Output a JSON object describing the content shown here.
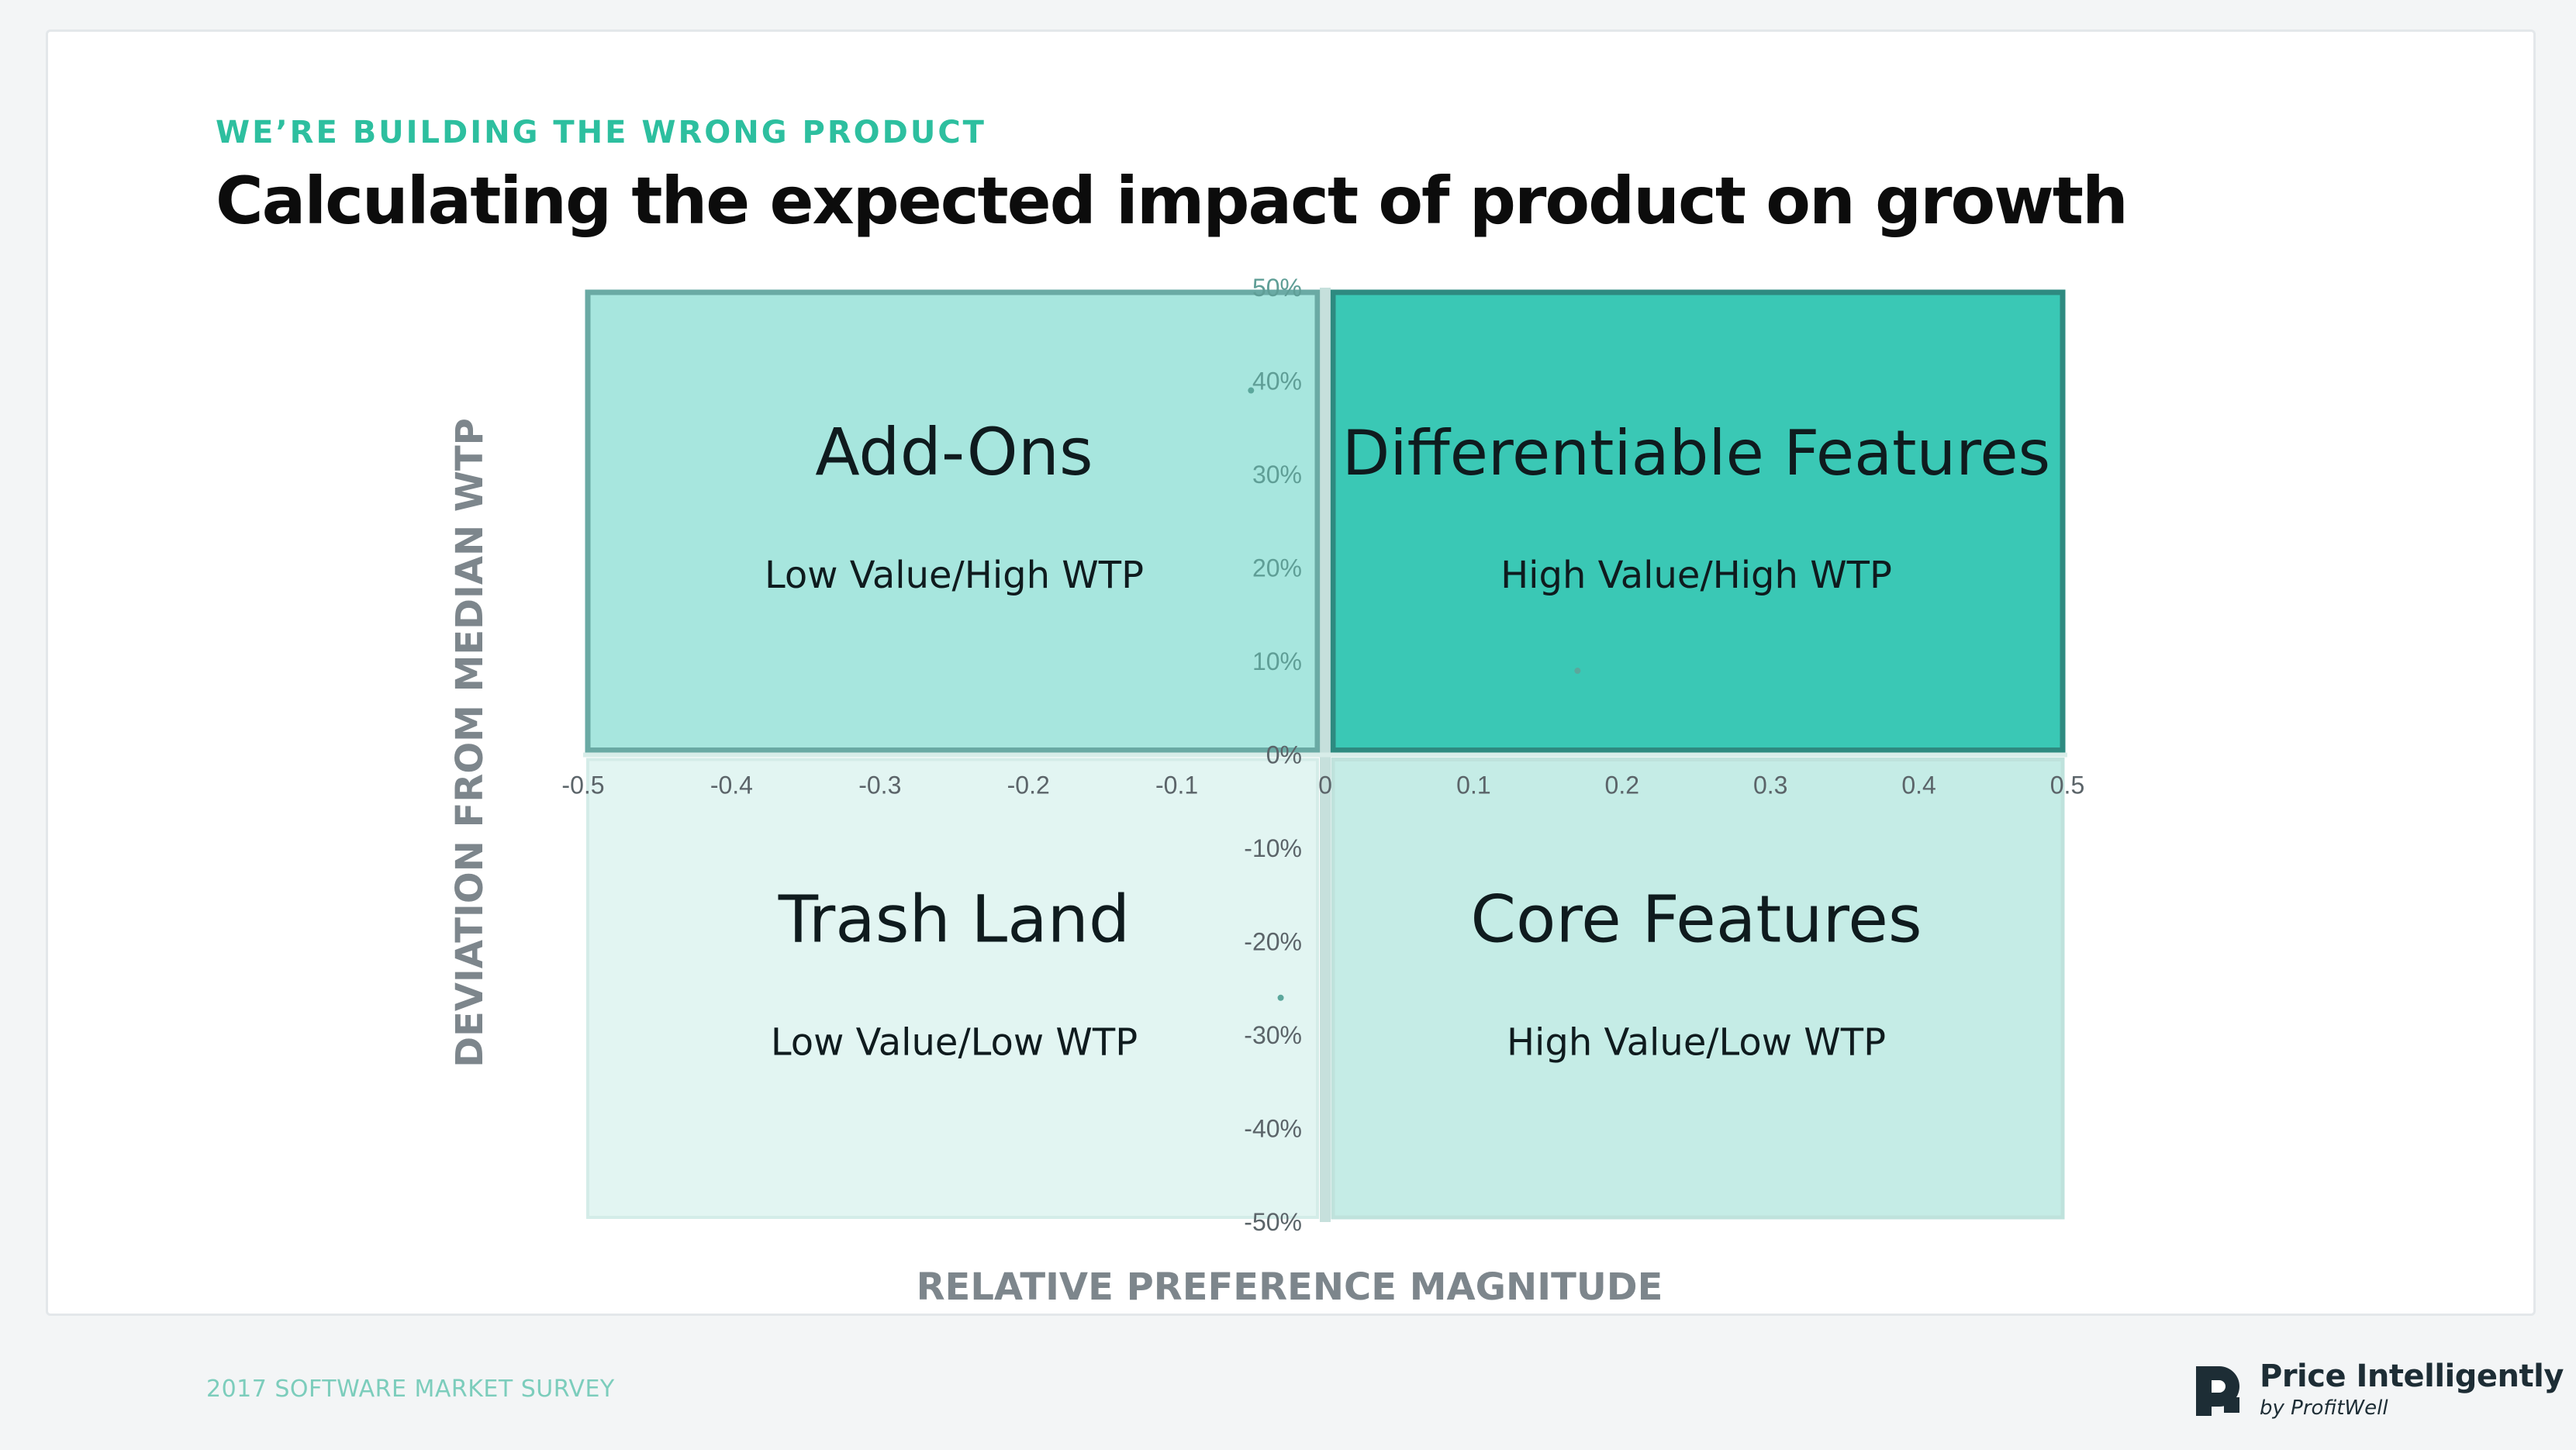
{
  "header": {
    "eyebrow": "WE’RE BUILDING THE WRONG PRODUCT",
    "title": "Calculating the expected impact of product on growth"
  },
  "footer": {
    "survey": "2017 SOFTWARE MARKET SURVEY",
    "brand_name": "Price Intelligently",
    "brand_sub": "by ProfitWell"
  },
  "colors": {
    "accent": "#2dbf9f",
    "top_right": "#3ac8b5",
    "top_left": "#a7e6de",
    "bottom_left": "#e2f5f2",
    "bottom_right": "#c5ece6",
    "border_strong": "#2e8a80",
    "border_soft": "#6aaaa4"
  },
  "chart_data": {
    "type": "scatter",
    "title": "",
    "xlabel": "RELATIVE PREFERENCE MAGNITUDE",
    "ylabel": "DEVIATION FROM MEDIAN WTP",
    "xlim": [
      -0.5,
      0.5
    ],
    "ylim": [
      -50,
      50
    ],
    "x_ticks": [
      "-0.5",
      "-0.4",
      "-0.3",
      "-0.2",
      "-0.1",
      "0",
      "0.1",
      "0.2",
      "0.3",
      "0.4",
      "0.5"
    ],
    "x_tick_values": [
      -0.5,
      -0.4,
      -0.3,
      -0.2,
      -0.1,
      0,
      0.1,
      0.2,
      0.3,
      0.4,
      0.5
    ],
    "y_ticks": [
      "50%",
      "40%",
      "30%",
      "20%",
      "10%",
      "0%",
      "-10%",
      "-20%",
      "-30%",
      "-40%",
      "-50%"
    ],
    "y_tick_values": [
      50,
      40,
      30,
      20,
      10,
      0,
      -10,
      -20,
      -30,
      -40,
      -50
    ],
    "grid": false,
    "quadrants": [
      {
        "key": "top_left",
        "name": "Add-Ons",
        "desc": "Low Value/High WTP",
        "x": [
          -0.5,
          0
        ],
        "y": [
          0,
          50
        ],
        "color": "#a7e6de"
      },
      {
        "key": "top_right",
        "name": "Differentiable Features",
        "desc": "High Value/High WTP",
        "x": [
          0,
          0.5
        ],
        "y": [
          0,
          50
        ],
        "color": "#3ac8b5"
      },
      {
        "key": "bottom_left",
        "name": "Trash Land",
        "desc": "Low Value/Low WTP",
        "x": [
          -0.5,
          0
        ],
        "y": [
          -50,
          0
        ],
        "color": "#e2f5f2"
      },
      {
        "key": "bottom_right",
        "name": "Core Features",
        "desc": "High Value/Low WTP",
        "x": [
          0,
          0.5
        ],
        "y": [
          -50,
          0
        ],
        "color": "#c5ece6"
      }
    ],
    "points": [
      {
        "x": -0.05,
        "y": 39
      },
      {
        "x": 0.17,
        "y": 9
      },
      {
        "x": -0.03,
        "y": -26
      }
    ]
  }
}
